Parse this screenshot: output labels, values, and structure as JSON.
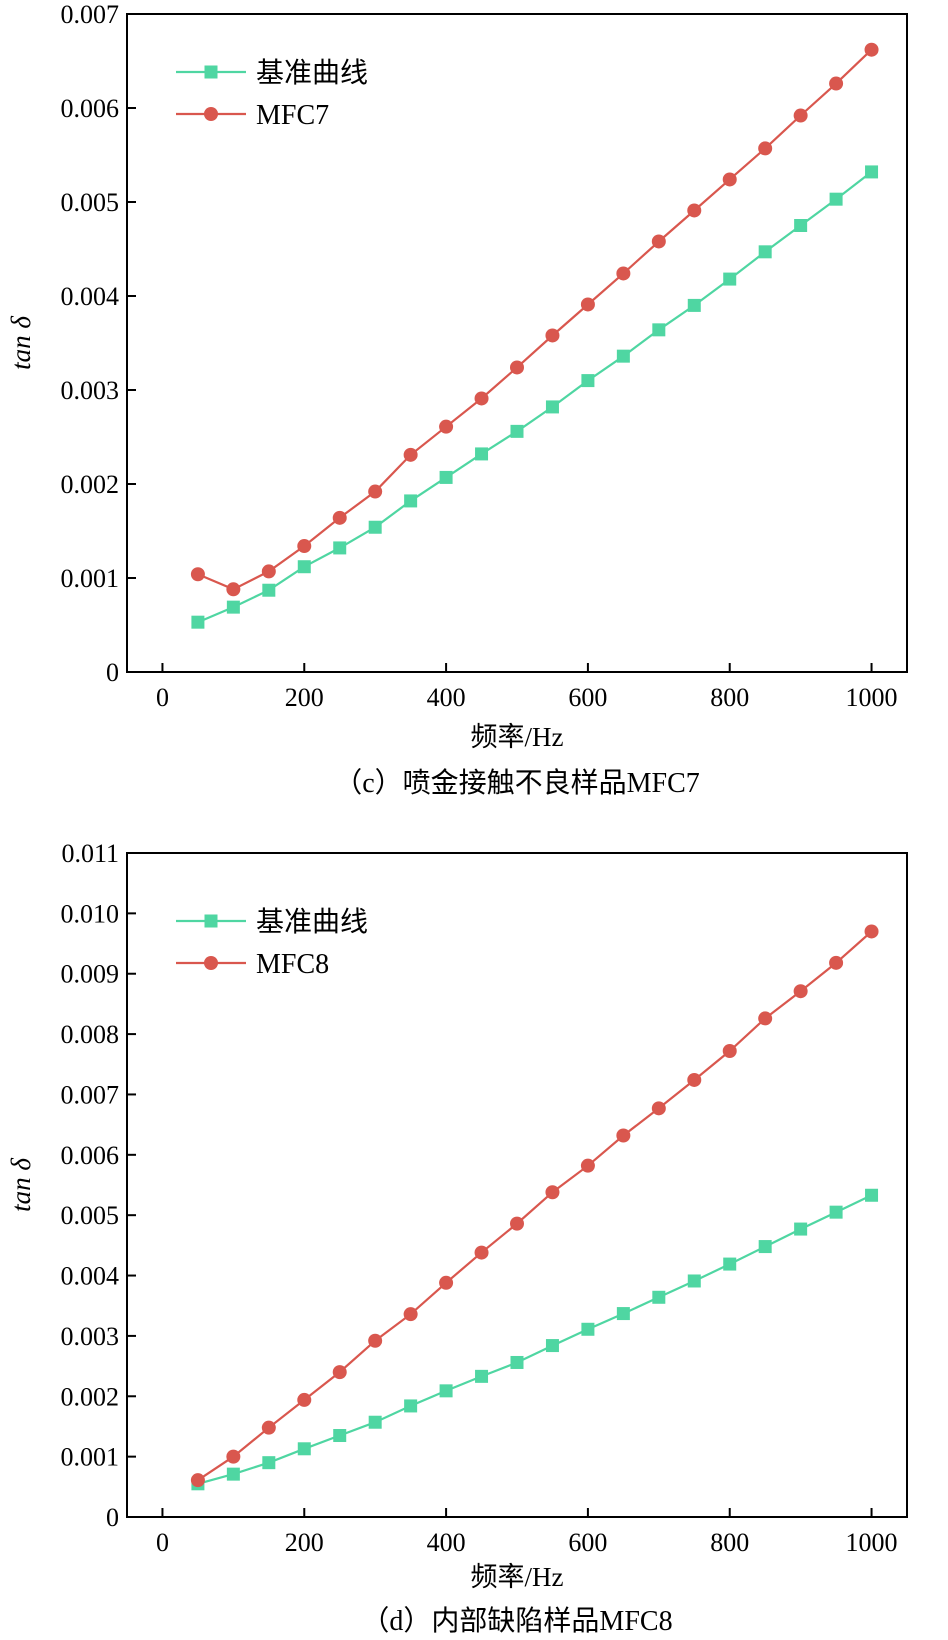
{
  "chart_data": [
    {
      "type": "line",
      "caption": "（c）喷金接触不良样品MFC7",
      "xlabel": "频率/Hz",
      "ylabel": "tan δ",
      "xlim": [
        -50,
        1050
      ],
      "ylim": [
        0,
        0.007
      ],
      "xticks": [
        0,
        200,
        400,
        600,
        800,
        1000
      ],
      "xtick_labels": [
        "0",
        "200",
        "400",
        "600",
        "800",
        "1000"
      ],
      "yticks": [
        0,
        0.001,
        0.002,
        0.003,
        0.004,
        0.005,
        0.006,
        0.007
      ],
      "ytick_labels": [
        "0",
        "0.001",
        "0.002",
        "0.003",
        "0.004",
        "0.005",
        "0.006",
        "0.007"
      ],
      "grid": false,
      "legend_position": "top-left",
      "x": [
        50,
        100,
        150,
        200,
        250,
        300,
        350,
        400,
        450,
        500,
        550,
        600,
        650,
        700,
        750,
        800,
        850,
        900,
        950,
        1000
      ],
      "series": [
        {
          "name": "基准曲线",
          "color": "#4fd6a2",
          "marker": "square",
          "values": [
            0.00053,
            0.00069,
            0.00087,
            0.00112,
            0.00132,
            0.00154,
            0.00182,
            0.00207,
            0.00232,
            0.00256,
            0.00282,
            0.0031,
            0.00336,
            0.00364,
            0.0039,
            0.00418,
            0.00447,
            0.00475,
            0.00503,
            0.00532
          ]
        },
        {
          "name": "MFC7",
          "color": "#d9574e",
          "marker": "circle",
          "values": [
            0.00104,
            0.00088,
            0.00107,
            0.00134,
            0.00164,
            0.00192,
            0.00231,
            0.00261,
            0.00291,
            0.00324,
            0.00358,
            0.00391,
            0.00424,
            0.00458,
            0.00491,
            0.00524,
            0.00557,
            0.00592,
            0.00626,
            0.00662
          ]
        }
      ]
    },
    {
      "type": "line",
      "caption": "（d）内部缺陷样品MFC8",
      "xlabel": "频率/Hz",
      "ylabel": "tan δ",
      "xlim": [
        -50,
        1050
      ],
      "ylim": [
        0,
        0.011
      ],
      "xticks": [
        0,
        200,
        400,
        600,
        800,
        1000
      ],
      "xtick_labels": [
        "0",
        "200",
        "400",
        "600",
        "800",
        "1000"
      ],
      "yticks": [
        0,
        0.001,
        0.002,
        0.003,
        0.004,
        0.005,
        0.006,
        0.007,
        0.008,
        0.009,
        0.01,
        0.011
      ],
      "ytick_labels": [
        "0",
        "0.001",
        "0.002",
        "0.003",
        "0.004",
        "0.005",
        "0.006",
        "0.007",
        "0.008",
        "0.009",
        "0.010",
        "0.011"
      ],
      "grid": false,
      "legend_position": "top-left",
      "x": [
        50,
        100,
        150,
        200,
        250,
        300,
        350,
        400,
        450,
        500,
        550,
        600,
        650,
        700,
        750,
        800,
        850,
        900,
        950,
        1000
      ],
      "series": [
        {
          "name": "基准曲线",
          "color": "#4fd6a2",
          "marker": "square",
          "values": [
            0.00055,
            0.00071,
            0.0009,
            0.00113,
            0.00135,
            0.00157,
            0.00184,
            0.00209,
            0.00233,
            0.00256,
            0.00284,
            0.00311,
            0.00337,
            0.00364,
            0.00391,
            0.00419,
            0.00448,
            0.00477,
            0.00505,
            0.00533
          ]
        },
        {
          "name": "MFC8",
          "color": "#d9574e",
          "marker": "circle",
          "values": [
            0.00061,
            0.001,
            0.00148,
            0.00194,
            0.0024,
            0.00292,
            0.00336,
            0.00388,
            0.00438,
            0.00486,
            0.00538,
            0.00582,
            0.00632,
            0.00677,
            0.00724,
            0.00772,
            0.00826,
            0.00871,
            0.00918,
            0.0097
          ]
        }
      ]
    }
  ]
}
